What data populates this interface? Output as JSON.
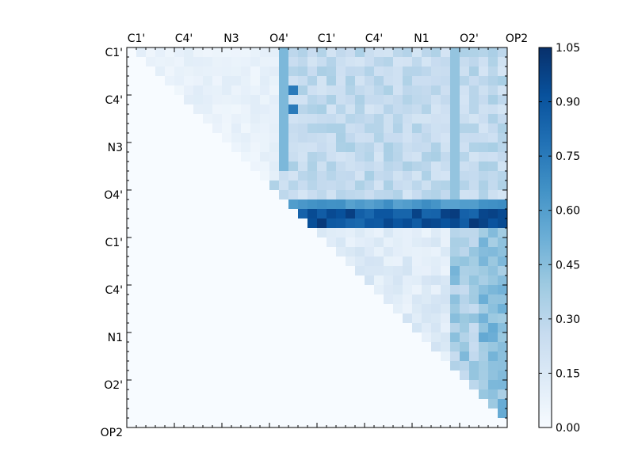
{
  "chart_data": {
    "type": "heatmap",
    "title": "",
    "xlabel": "",
    "ylabel": "",
    "x_tick_labels": [
      "C1'",
      "C4'",
      "N3",
      "O4'",
      "C1'",
      "C4'",
      "N1",
      "O2'",
      "OP2"
    ],
    "y_tick_labels": [
      "C1'",
      "C4'",
      "N3",
      "O4'",
      "C1'",
      "C4'",
      "N1",
      "O2'",
      "OP2"
    ],
    "grid_size": 40,
    "colormap": "Blues",
    "colormap_stops": [
      "#f7fbff",
      "#deebf7",
      "#c6dbef",
      "#9ecae1",
      "#6baed6",
      "#4292c6",
      "#2171b5",
      "#08519c",
      "#08306b"
    ],
    "vmin": 0.0,
    "vmax": 1.05,
    "colorbar_ticks": [
      "0.00",
      "0.15",
      "0.30",
      "0.45",
      "0.60",
      "0.75",
      "0.90",
      "1.05"
    ],
    "grid": false,
    "approximate_values_by_row_block": {
      "row_0_to_19_upper_triangle_left_block": 0.07,
      "row_0_to_19_right_block": 0.25,
      "column_vertical_bands": [
        {
          "col": 16,
          "value": 0.5
        },
        {
          "col": 34,
          "value": 0.45
        }
      ],
      "row_16": 0.62,
      "rows_17_to_18": 0.9,
      "row_19_to_39_right_block": 0.12,
      "cols_37_to_39_lower_right": 0.4,
      "lower_triangle": 0.0
    }
  }
}
